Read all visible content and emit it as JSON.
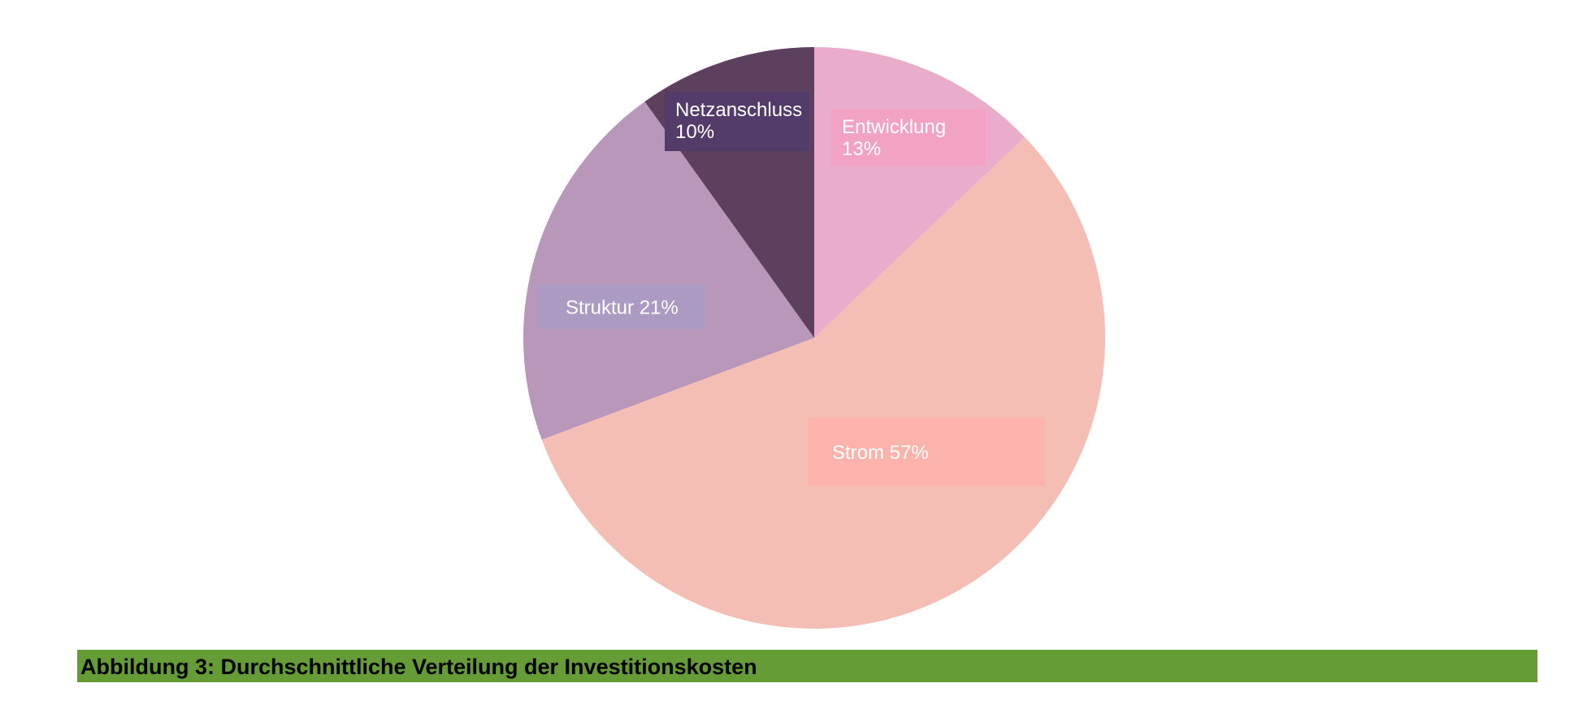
{
  "chart_data": {
    "type": "pie",
    "title": "",
    "start": "top",
    "direction": "clockwise",
    "slices": [
      {
        "label": "Entwicklung",
        "value": 13,
        "value_label": "13%",
        "color": "#e9adcb",
        "label_bg": "#f2a2c3"
      },
      {
        "label": "Strom",
        "value": 57,
        "value_label": "57%",
        "color": "#f4beb4",
        "label_bg": "#fbb3ab"
      },
      {
        "label": "Struktur",
        "value": 21,
        "value_label": "21%",
        "color": "#b997bb",
        "label_bg": "#ab9bc2"
      },
      {
        "label": "Netzanschluss",
        "value": 10,
        "value_label": "10%",
        "color": "#5d3f5e",
        "label_bg": "#543c6a"
      }
    ]
  },
  "caption": {
    "text": "Abbildung 3: Durchschnittliche Verteilung der Investitionskosten",
    "background": "#669c35"
  }
}
